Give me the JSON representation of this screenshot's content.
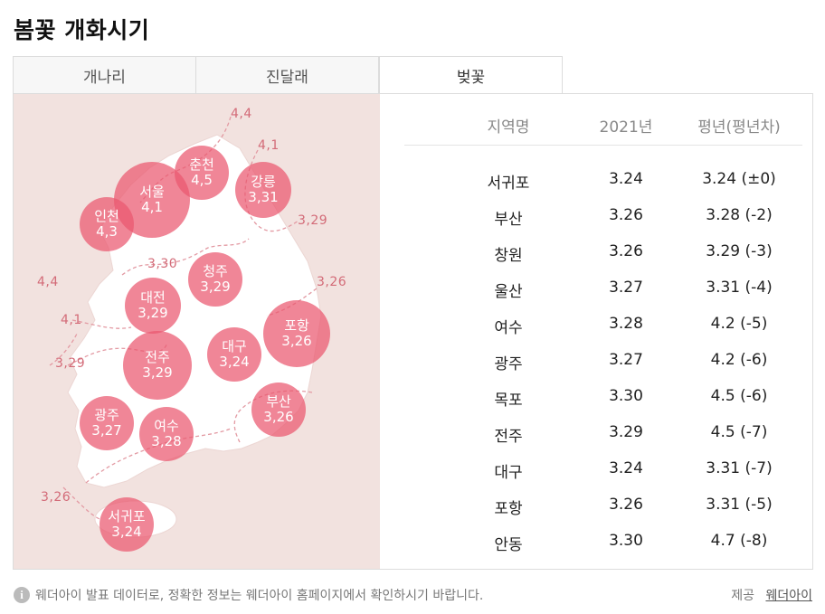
{
  "title": "봄꽃 개화시기",
  "tabs": [
    {
      "label": "개나리",
      "active": false
    },
    {
      "label": "진달래",
      "active": false
    },
    {
      "label": "벚꽃",
      "active": true
    }
  ],
  "map": {
    "bubbles": [
      {
        "name": "서울",
        "value": "4,1"
      },
      {
        "name": "춘천",
        "value": "4,5"
      },
      {
        "name": "강릉",
        "value": "3,31"
      },
      {
        "name": "인천",
        "value": "4,3"
      },
      {
        "name": "청주",
        "value": "3,29"
      },
      {
        "name": "대전",
        "value": "3,29"
      },
      {
        "name": "포항",
        "value": "3,26"
      },
      {
        "name": "대구",
        "value": "3,24"
      },
      {
        "name": "전주",
        "value": "3,29"
      },
      {
        "name": "광주",
        "value": "3,27"
      },
      {
        "name": "부산",
        "value": "3,26"
      },
      {
        "name": "여수",
        "value": "3,28"
      },
      {
        "name": "서귀포",
        "value": "3,24"
      }
    ],
    "contour_labels": [
      "4,4",
      "4,1",
      "3,29",
      "3,30",
      "4,4",
      "3,26",
      "4,1",
      "3,29",
      "3,26"
    ]
  },
  "table": {
    "headers": [
      "지역명",
      "2021년",
      "평년(평년차)"
    ],
    "rows": [
      [
        "서귀포",
        "3.24",
        "3.24 (±0)"
      ],
      [
        "부산",
        "3.26",
        "3.28 (-2)"
      ],
      [
        "창원",
        "3.26",
        "3.29 (-3)"
      ],
      [
        "울산",
        "3.27",
        "3.31 (-4)"
      ],
      [
        "여수",
        "3.28",
        "4.2 (-5)"
      ],
      [
        "광주",
        "3.27",
        "4.2 (-6)"
      ],
      [
        "목포",
        "3.30",
        "4.5 (-6)"
      ],
      [
        "전주",
        "3.29",
        "4.5 (-7)"
      ],
      [
        "대구",
        "3.24",
        "3.31 (-7)"
      ],
      [
        "포항",
        "3.26",
        "3.31 (-5)"
      ],
      [
        "안동",
        "3.30",
        "4.7 (-8)"
      ]
    ]
  },
  "footer": {
    "info_icon": "info-icon",
    "note": "웨더아이 발표 데이터로, 정확한 정보는 웨더아이 홈페이지에서 확인하시기 바랍니다.",
    "provider_label": "제공",
    "provider_link": "웨더아이"
  },
  "colors": {
    "bubble": "#ea586f",
    "map_bg": "#f2e2df",
    "land": "#ffffff",
    "contour": "#e39aa3"
  }
}
